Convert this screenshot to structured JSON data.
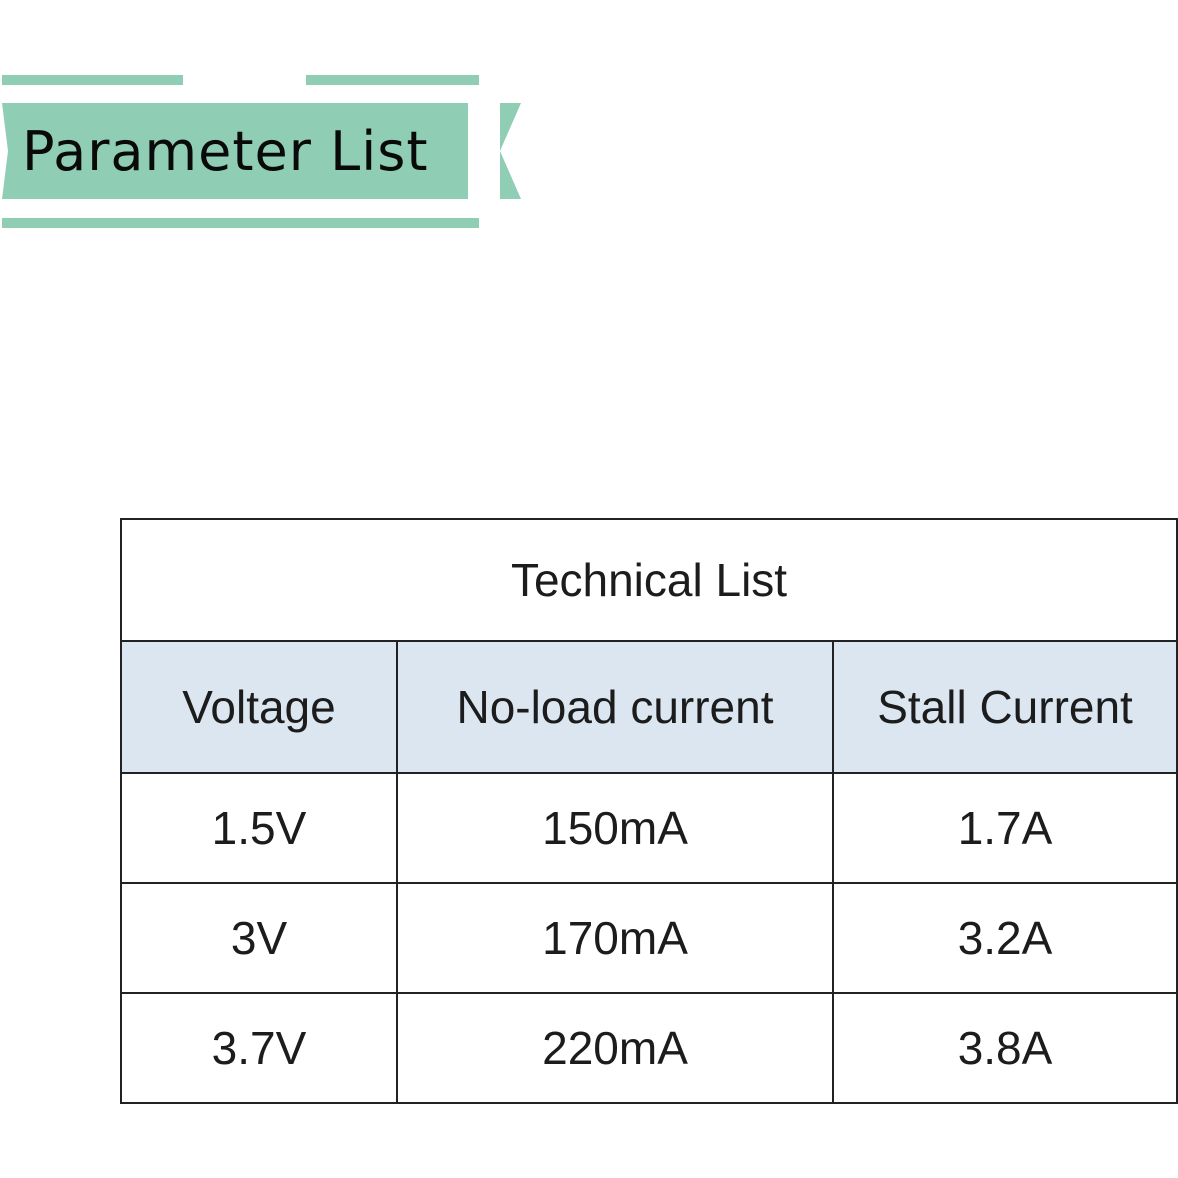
{
  "banner": {
    "title": "Parameter List",
    "color": "#8fcdb5"
  },
  "table": {
    "title": "Technical List",
    "header_bg": "#dce6f1",
    "columns": [
      "Voltage",
      "No-load current",
      "Stall Current"
    ],
    "rows": [
      [
        "1.5V",
        "150mA",
        "1.7A"
      ],
      [
        "3V",
        "170mA",
        "3.2A"
      ],
      [
        "3.7V",
        "220mA",
        "3.8A"
      ]
    ]
  }
}
